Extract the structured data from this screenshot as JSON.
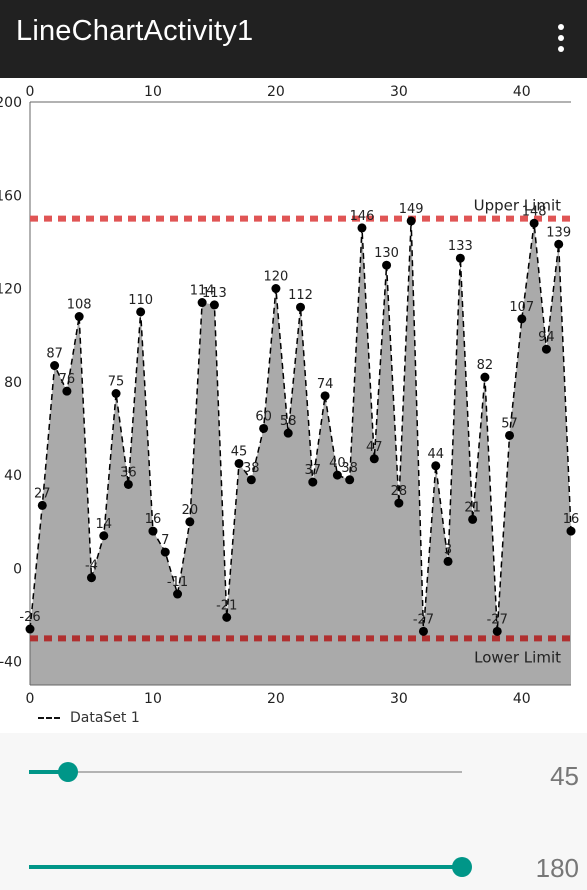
{
  "appbar": {
    "title": "LineChartActivity1",
    "menu_icon": "more-vert-icon"
  },
  "chart_data": {
    "type": "area",
    "x": [
      0,
      1,
      2,
      3,
      4,
      5,
      6,
      7,
      8,
      9,
      10,
      11,
      12,
      13,
      14,
      15,
      16,
      17,
      18,
      19,
      20,
      21,
      22,
      23,
      24,
      25,
      26,
      27,
      28,
      29,
      30,
      31,
      32,
      33,
      34,
      35,
      36,
      37,
      38,
      39,
      40,
      41,
      42,
      43,
      44
    ],
    "values": [
      -26,
      27,
      87,
      76,
      108,
      -4,
      14,
      75,
      36,
      110,
      16,
      7,
      -11,
      20,
      114,
      113,
      -21,
      45,
      38,
      60,
      120,
      58,
      112,
      37,
      74,
      40,
      38,
      146,
      47,
      130,
      28,
      149,
      -27,
      44,
      3,
      133,
      21,
      82,
      -27,
      57,
      107,
      148,
      94,
      139,
      16
    ],
    "series": [
      {
        "name": "DataSet 1",
        "line_style": "dashed",
        "color": "#000000",
        "fill_color": "#aaaaaa"
      }
    ],
    "xlim": [
      0,
      44
    ],
    "ylim": [
      -50,
      200
    ],
    "x_ticks": [
      0,
      10,
      20,
      30,
      40
    ],
    "y_ticks": [
      -40,
      0,
      40,
      80,
      120,
      160,
      200
    ],
    "x_axis_top": true,
    "x_axis_bottom": true,
    "grid": false,
    "limit_lines": [
      {
        "label": "Upper Limit",
        "value": 150,
        "color": "#e05555"
      },
      {
        "label": "Lower Limit",
        "value": -30,
        "color": "#b03030"
      }
    ],
    "legend": {
      "position": "bottom-left",
      "label": "DataSet 1"
    }
  },
  "controls": {
    "slider_x": {
      "value": 45,
      "min": 0,
      "max": 500,
      "label": "45"
    },
    "slider_range": {
      "value": 180,
      "min": 0,
      "max": 180,
      "label": "180"
    }
  }
}
